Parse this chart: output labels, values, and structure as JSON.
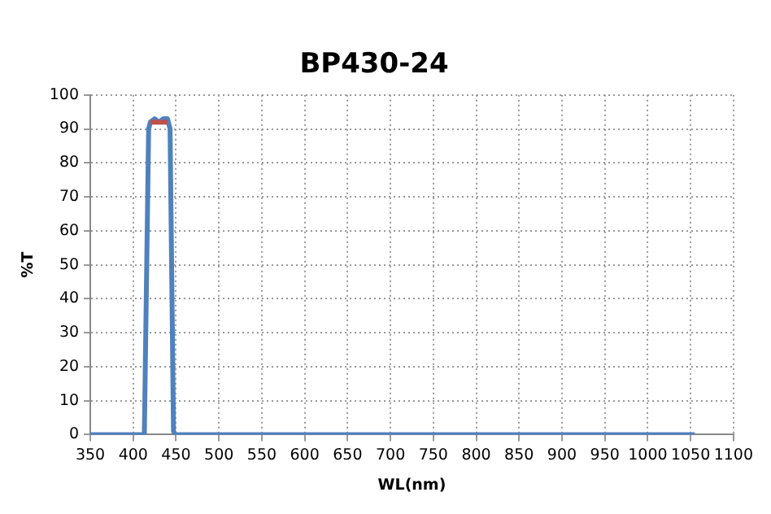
{
  "chart_data": {
    "type": "line",
    "title": "BP430-24",
    "xlabel": "WL(nm)",
    "ylabel": "%T",
    "xlim": [
      350,
      1100
    ],
    "xticks": [
      350,
      400,
      450,
      500,
      550,
      600,
      650,
      700,
      750,
      800,
      850,
      900,
      950,
      1000,
      1050,
      1100
    ],
    "ylim": [
      0,
      100
    ],
    "yticks": [
      0,
      10,
      20,
      30,
      40,
      50,
      60,
      70,
      80,
      90,
      100
    ],
    "grid": true,
    "legend": false,
    "marker": "none",
    "line_style": "solid",
    "series": [
      {
        "color": "#c0504d",
        "x": [
          420,
          440
        ],
        "values": [
          92,
          92
        ]
      },
      {
        "color": "#4f81bd",
        "x": [
          350,
          413,
          418,
          420,
          425,
          430,
          435,
          440,
          443,
          447,
          449,
          1055
        ],
        "values": [
          0,
          0,
          90,
          92,
          93,
          92,
          93,
          93,
          90,
          1,
          0,
          0
        ]
      }
    ]
  }
}
